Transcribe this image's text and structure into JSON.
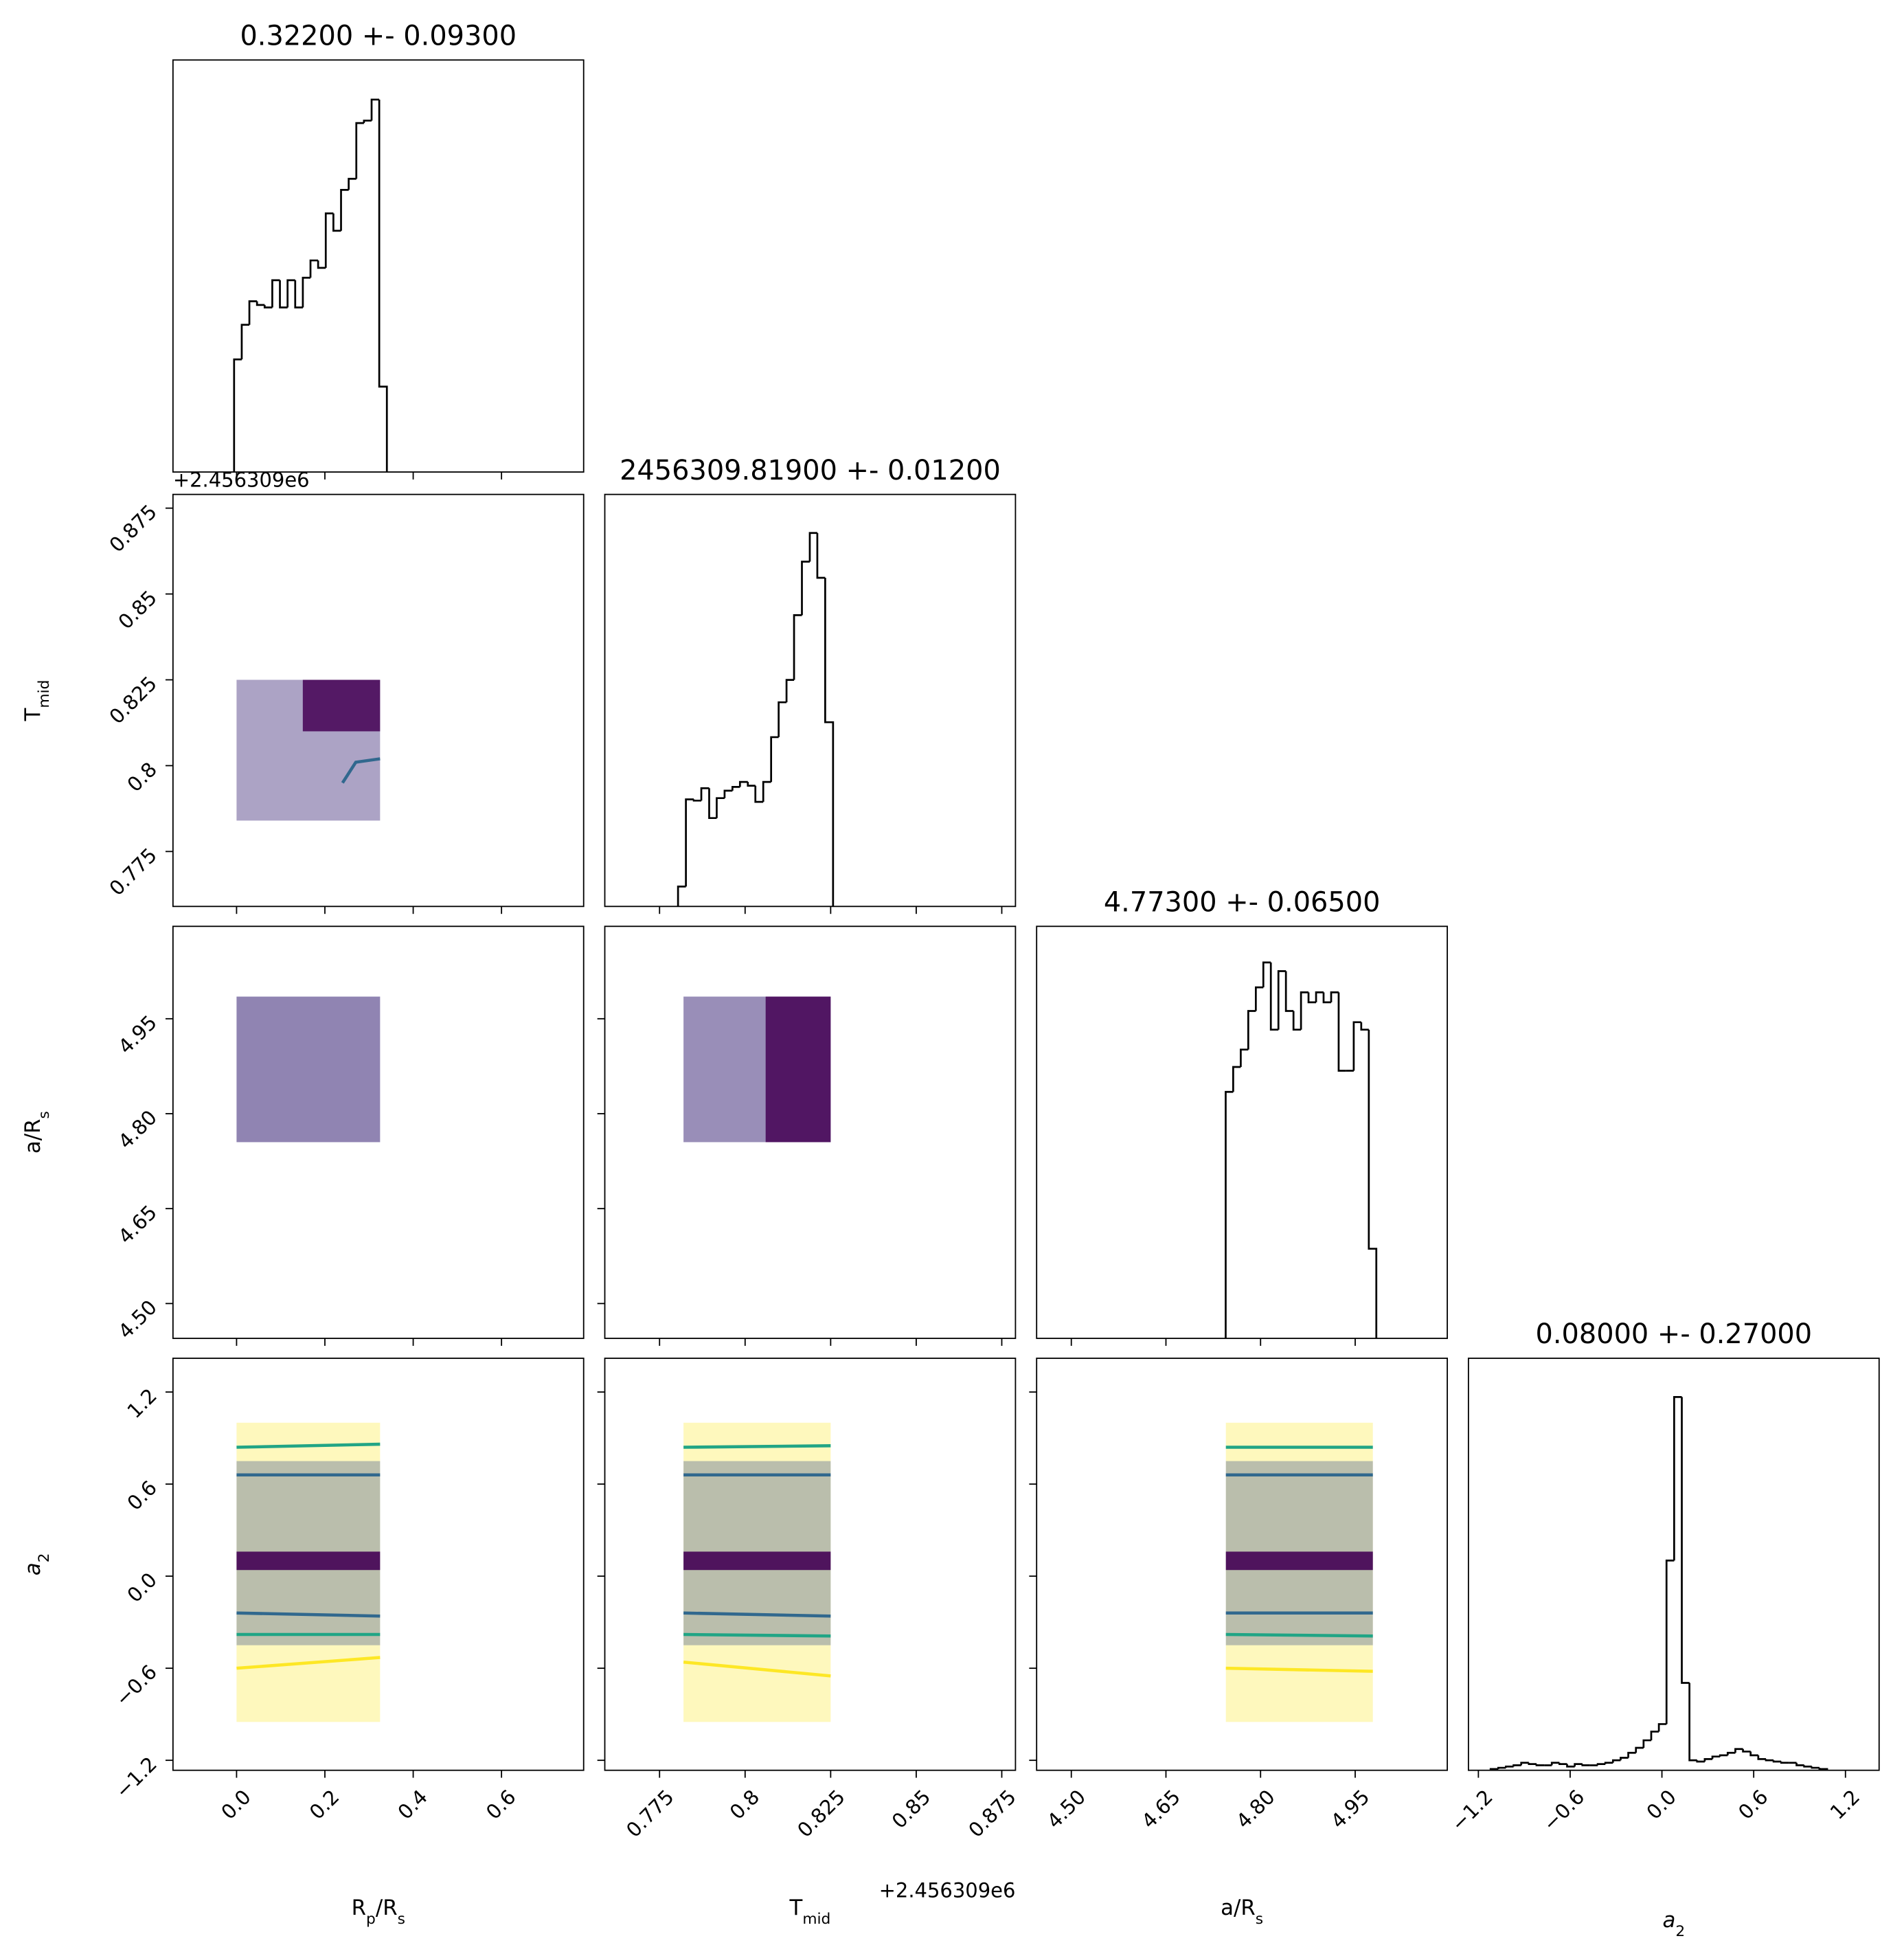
{
  "chart_data": {
    "type": "corner",
    "params": [
      {
        "label": [
          {
            "t": "R"
          },
          {
            "t": "p",
            "sub": true
          },
          {
            "t": "/R"
          },
          {
            "t": "s",
            "sub": true
          }
        ],
        "title": "0.32200 +- 0.09300",
        "lim": [
          -0.144,
          0.786
        ],
        "ticks": [
          {
            "value": 0,
            "label": "0.0"
          },
          0.2,
          0.4,
          0.6
        ],
        "hist": {
          "color": "#000000",
          "ylim": [
            0,
            333
          ],
          "bins": [
            -0.0056,
            0.0117,
            0.029,
            0.0463,
            0.0636,
            0.0809,
            0.0982,
            0.1155,
            0.1328,
            0.1501,
            0.1674,
            0.1847,
            0.202,
            0.2193,
            0.2366,
            0.2539,
            0.2712,
            0.2885,
            0.3058,
            0.3231,
            0.3404
          ],
          "counts": [
            91,
            119,
            138,
            135,
            133,
            155,
            133,
            155,
            133,
            157,
            171,
            165,
            209,
            195,
            228,
            237,
            282,
            284,
            301,
            69
          ]
        }
      },
      {
        "label": [
          {
            "t": "T"
          },
          {
            "t": "mid",
            "sub": true
          }
        ],
        "title": "2456309.81900 +- 0.01200",
        "offset": "+2.456309e6",
        "lim": [
          0.759,
          0.879
        ],
        "ticks": [
          0.775,
          0.8,
          0.825,
          0.85,
          0.875
        ],
        "hist": {
          "color": "#000000",
          "ylim": [
            0,
            331
          ],
          "bins": [
            0.7804,
            0.7827,
            0.785,
            0.7872,
            0.7895,
            0.7917,
            0.794,
            0.7963,
            0.7985,
            0.8008,
            0.803,
            0.8053,
            0.8076,
            0.8098,
            0.8121,
            0.8143,
            0.8166,
            0.8189,
            0.8211,
            0.8234,
            0.8257
          ],
          "counts": [
            16,
            86,
            85,
            95,
            71,
            87,
            93,
            96,
            100,
            97,
            84,
            100,
            136,
            164,
            182,
            234,
            277,
            300,
            264,
            148
          ]
        }
      },
      {
        "label": [
          {
            "t": "a/R"
          },
          {
            "t": "s",
            "sub": true
          }
        ],
        "title": "4.77300 +- 0.06500",
        "lim": [
          4.445,
          5.096
        ],
        "ticks": [
          {
            "value": 4.5,
            "label": "4.50"
          },
          4.65,
          {
            "value": 4.8,
            "label": "4.80"
          },
          4.95
        ],
        "hist": {
          "color": "#000000",
          "ylim": [
            0,
            331
          ],
          "bins": [
            4.7447,
            4.7566,
            4.7686,
            4.7805,
            4.7925,
            4.8044,
            4.8163,
            4.8283,
            4.8402,
            4.8522,
            4.8641,
            4.876,
            4.888,
            4.8999,
            4.9119,
            4.9238,
            4.9357,
            4.9477,
            4.9596,
            4.9716,
            4.9835
          ],
          "counts": [
            198,
            218,
            232,
            263,
            282,
            302,
            248,
            295,
            263,
            248,
            278,
            270,
            278,
            270,
            278,
            215,
            215,
            254,
            248,
            72
          ]
        }
      },
      {
        "label": [
          {
            "t": "a",
            "italic": true
          },
          {
            "t": "2",
            "sub": true
          }
        ],
        "title": "0.08000 +- 0.27000",
        "lim": [
          -1.265,
          1.42
        ],
        "ticks": [
          {
            "value": -1.2,
            "label": "−1.2"
          },
          {
            "value": -0.6,
            "label": "−0.6"
          },
          {
            "value": 0,
            "label": "0.0"
          },
          0.6,
          1.2
        ],
        "hist": {
          "color": "#000000",
          "ylim": [
            0,
            330
          ],
          "bins": [
            -1.12,
            -1.07,
            -1.02,
            -0.97,
            -0.92,
            -0.87,
            -0.82,
            -0.77,
            -0.72,
            -0.67,
            -0.62,
            -0.57,
            -0.52,
            -0.47,
            -0.42,
            -0.37,
            -0.32,
            -0.27,
            -0.22,
            -0.17,
            -0.12,
            -0.07,
            -0.02,
            0.03,
            0.08,
            0.13,
            0.18,
            0.23,
            0.28,
            0.33,
            0.38,
            0.43,
            0.48,
            0.53,
            0.58,
            0.63,
            0.68,
            0.73,
            0.78,
            0.83,
            0.88,
            0.93,
            0.98,
            1.03,
            1.08
          ],
          "counts": [
            1,
            2,
            3,
            4,
            6,
            5,
            4,
            4,
            6,
            5,
            3,
            5,
            4,
            4,
            5,
            6,
            8,
            10,
            14,
            18,
            24,
            31,
            37,
            168,
            299,
            70,
            8,
            7,
            9,
            11,
            12,
            14,
            17,
            15,
            12,
            9,
            8,
            7,
            6,
            6,
            4,
            3,
            2,
            1
          ]
        }
      }
    ],
    "panels": [
      {
        "x_param": 0,
        "y_param": 1,
        "clouds": [
          {
            "x": [
              0.0,
              0.325
            ],
            "y": [
              0.784,
              0.825
            ],
            "color": "#46327e",
            "alpha": 0.45
          },
          {
            "x": [
              0.15,
              0.325
            ],
            "y": [
              0.81,
              0.825
            ],
            "color": "#440154",
            "alpha": 0.85
          }
        ],
        "contours": [
          {
            "x": [
              0.24,
              0.27,
              0.325
            ],
            "y": [
              0.795,
              0.801,
              0.802
            ],
            "color": "#31688e"
          }
        ]
      },
      {
        "x_param": 0,
        "y_param": 2,
        "clouds": [
          {
            "x": [
              0.0,
              0.325
            ],
            "y": [
              4.755,
              4.985
            ],
            "color": "#46327e",
            "alpha": 0.6
          }
        ],
        "contours": []
      },
      {
        "x_param": 1,
        "y_param": 2,
        "clouds": [
          {
            "x": [
              0.782,
              0.825
            ],
            "y": [
              4.755,
              4.985
            ],
            "color": "#46327e",
            "alpha": 0.55
          },
          {
            "x": [
              0.806,
              0.825
            ],
            "y": [
              4.755,
              4.985
            ],
            "color": "#440154",
            "alpha": 0.85
          }
        ],
        "contours": []
      },
      {
        "x_param": 0,
        "y_param": 3,
        "clouds": [
          {
            "x": [
              0.0,
              0.325
            ],
            "y": [
              -0.95,
              1.0
            ],
            "color": "#fde725",
            "alpha": 0.3
          },
          {
            "x": [
              0.0,
              0.325
            ],
            "y": [
              -0.45,
              0.75
            ],
            "color": "#3b528b",
            "alpha": 0.35
          },
          {
            "x": [
              0.0,
              0.325
            ],
            "y": [
              0.04,
              0.16
            ],
            "color": "#440154",
            "alpha": 0.9
          }
        ],
        "contours": [
          {
            "x": [
              0.0,
              0.325
            ],
            "y": [
              0.84,
              0.86
            ],
            "color": "#21a585"
          },
          {
            "x": [
              0.0,
              0.325
            ],
            "y": [
              0.66,
              0.66
            ],
            "color": "#31688e"
          },
          {
            "x": [
              0.0,
              0.325
            ],
            "y": [
              -0.24,
              -0.26
            ],
            "color": "#31688e"
          },
          {
            "x": [
              0.0,
              0.325
            ],
            "y": [
              -0.38,
              -0.38
            ],
            "color": "#21a585"
          },
          {
            "x": [
              0.0,
              0.325
            ],
            "y": [
              -0.6,
              -0.53
            ],
            "color": "#fde725"
          }
        ]
      },
      {
        "x_param": 1,
        "y_param": 3,
        "clouds": [
          {
            "x": [
              0.782,
              0.825
            ],
            "y": [
              -0.95,
              1.0
            ],
            "color": "#fde725",
            "alpha": 0.3
          },
          {
            "x": [
              0.782,
              0.825
            ],
            "y": [
              -0.45,
              0.75
            ],
            "color": "#3b528b",
            "alpha": 0.35
          },
          {
            "x": [
              0.782,
              0.825
            ],
            "y": [
              0.04,
              0.16
            ],
            "color": "#440154",
            "alpha": 0.9
          }
        ],
        "contours": [
          {
            "x": [
              0.782,
              0.825
            ],
            "y": [
              0.84,
              0.85
            ],
            "color": "#21a585"
          },
          {
            "x": [
              0.782,
              0.825
            ],
            "y": [
              0.66,
              0.66
            ],
            "color": "#31688e"
          },
          {
            "x": [
              0.782,
              0.825
            ],
            "y": [
              -0.24,
              -0.26
            ],
            "color": "#31688e"
          },
          {
            "x": [
              0.782,
              0.825
            ],
            "y": [
              -0.38,
              -0.39
            ],
            "color": "#21a585"
          },
          {
            "x": [
              0.782,
              0.825
            ],
            "y": [
              -0.56,
              -0.65
            ],
            "color": "#fde725"
          }
        ]
      },
      {
        "x_param": 2,
        "y_param": 3,
        "clouds": [
          {
            "x": [
              4.745,
              4.978
            ],
            "y": [
              -0.95,
              1.0
            ],
            "color": "#fde725",
            "alpha": 0.3
          },
          {
            "x": [
              4.745,
              4.978
            ],
            "y": [
              -0.45,
              0.75
            ],
            "color": "#3b528b",
            "alpha": 0.35
          },
          {
            "x": [
              4.745,
              4.978
            ],
            "y": [
              0.04,
              0.16
            ],
            "color": "#440154",
            "alpha": 0.9
          }
        ],
        "contours": [
          {
            "x": [
              4.745,
              4.978
            ],
            "y": [
              0.84,
              0.84
            ],
            "color": "#21a585"
          },
          {
            "x": [
              4.745,
              4.978
            ],
            "y": [
              0.66,
              0.66
            ],
            "color": "#31688e"
          },
          {
            "x": [
              4.745,
              4.978
            ],
            "y": [
              -0.24,
              -0.24
            ],
            "color": "#31688e"
          },
          {
            "x": [
              4.745,
              4.978
            ],
            "y": [
              -0.38,
              -0.39
            ],
            "color": "#21a585"
          },
          {
            "x": [
              4.745,
              4.978
            ],
            "y": [
              -0.6,
              -0.62
            ],
            "color": "#fde725"
          }
        ]
      }
    ]
  }
}
